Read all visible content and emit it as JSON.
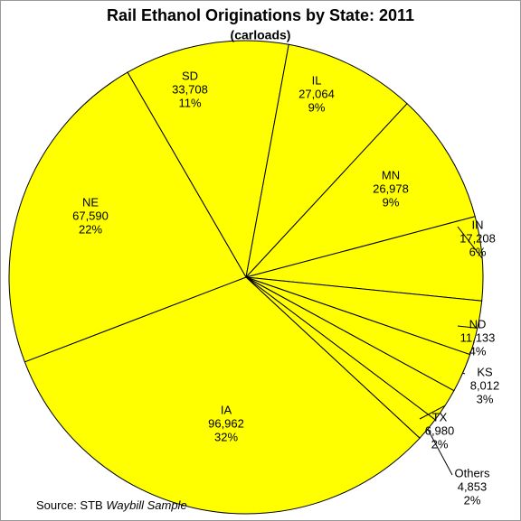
{
  "chart_data": {
    "type": "pie",
    "title": "Rail Ethanol Originations by State: 2011",
    "subtitle": "(carloads)",
    "categories": [
      "SD",
      "IL",
      "MN",
      "IN",
      "ND",
      "KS",
      "TX",
      "Others",
      "IA",
      "NE"
    ],
    "values": [
      33708,
      27064,
      26978,
      17208,
      11133,
      8012,
      6980,
      4853,
      96962,
      67590
    ],
    "value_labels": [
      "33,708",
      "27,064",
      "26,978",
      "17,208",
      "11,133",
      "8,012",
      "6,980",
      "4,853",
      "96,962",
      "67,590"
    ],
    "percent_labels": [
      "11%",
      "9%",
      "9%",
      "6%",
      "4%",
      "3%",
      "2%",
      "2%",
      "32%",
      "22%"
    ],
    "color": "#ffff00",
    "source": {
      "prefix": "Source: STB",
      "italic": "Waybill Sample"
    }
  }
}
